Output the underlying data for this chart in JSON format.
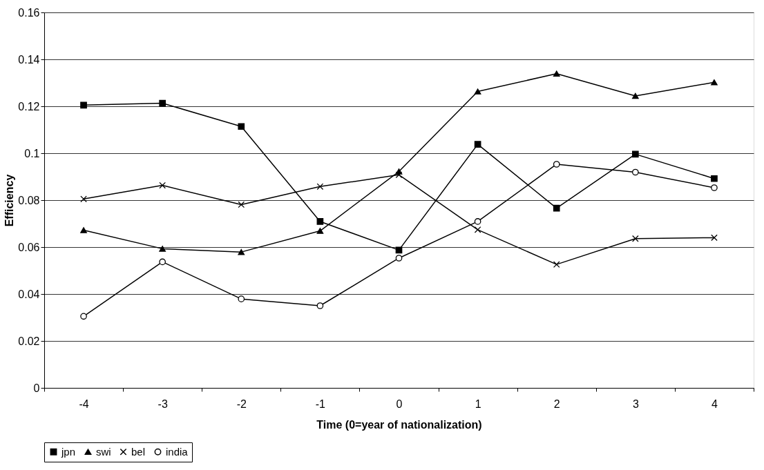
{
  "chart_data": {
    "type": "line",
    "xlabel": "Time (0=year of nationalization)",
    "ylabel": "Efficiency",
    "categories": [
      "-4",
      "-3",
      "-2",
      "-1",
      "0",
      "1",
      "2",
      "3",
      "4"
    ],
    "series": [
      {
        "name": "jpn",
        "color": "#000000",
        "marker": "square",
        "values": [
          0.1205,
          0.1213,
          0.1114,
          0.0709,
          0.0587,
          0.1038,
          0.0766,
          0.0996,
          0.0892
        ]
      },
      {
        "name": "swi",
        "color": "#000000",
        "marker": "triangle",
        "values": [
          0.0672,
          0.0593,
          0.0579,
          0.0669,
          0.0922,
          0.1263,
          0.1339,
          0.1244,
          0.1302
        ]
      },
      {
        "name": "bel",
        "color": "#000000",
        "marker": "cross",
        "values": [
          0.0805,
          0.0863,
          0.0781,
          0.0858,
          0.0908,
          0.0674,
          0.0526,
          0.0636,
          0.064
        ]
      },
      {
        "name": "india",
        "color": "#000000",
        "marker": "circle",
        "values": [
          0.0305,
          0.0537,
          0.0379,
          0.035,
          0.0553,
          0.0709,
          0.0953,
          0.0919,
          0.0853
        ]
      }
    ],
    "ylim": [
      0,
      0.16
    ],
    "yticks": [
      0,
      0.02,
      0.04,
      0.06,
      0.08,
      0.1,
      0.12,
      0.14,
      0.16
    ],
    "grid": "y",
    "legend": "bottom",
    "line_style": "solid"
  }
}
